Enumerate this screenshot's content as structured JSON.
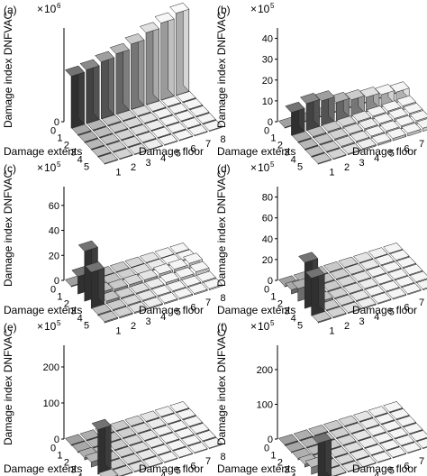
{
  "figure": {
    "common": {
      "zlabel": "Damage index DNFVAC",
      "xlabel": "Damage floor",
      "ylabel": "Damage extents",
      "x_ticks": [
        "1",
        "2",
        "3",
        "4",
        "5",
        "6",
        "7",
        "8"
      ],
      "y_ticks": [
        "0",
        "1",
        "2",
        "3",
        "4",
        "5"
      ]
    }
  },
  "chart_data": [
    {
      "type": "bar3d",
      "panel": "(a)",
      "exponent": "6",
      "z_ticks": [
        "0"
      ],
      "zlim": [
        0,
        5.6
      ],
      "floors": [
        1,
        2,
        3,
        4,
        5,
        6,
        7,
        8
      ],
      "extents": [
        0,
        1,
        2,
        3,
        4,
        5
      ],
      "values": [
        [
          3.1,
          3.2,
          3.4,
          3.6,
          3.9,
          4.3,
          4.6,
          4.9
        ],
        [
          0,
          0,
          0,
          0,
          0,
          0,
          0,
          0
        ],
        [
          0,
          0,
          0,
          0,
          0,
          0,
          0,
          0
        ],
        [
          0,
          0,
          0,
          0,
          0,
          0,
          0,
          0
        ],
        [
          0,
          0,
          0,
          0,
          0,
          0,
          0,
          0
        ],
        [
          0,
          0,
          0,
          0,
          0,
          0,
          0,
          0
        ]
      ]
    },
    {
      "type": "bar3d",
      "panel": "(b)",
      "exponent": "5",
      "z_ticks": [
        "0",
        "10",
        "20",
        "30",
        "40"
      ],
      "zlim": [
        0,
        45
      ],
      "floors": [
        1,
        2,
        3,
        4,
        5,
        6,
        7,
        8
      ],
      "extents": [
        0,
        1,
        2,
        3,
        4,
        5
      ],
      "values": [
        [
          0,
          0,
          0,
          0,
          0,
          0,
          0,
          0
        ],
        [
          11,
          13,
          12,
          9,
          8,
          7,
          6,
          5
        ],
        [
          0.4,
          0.6,
          0.8,
          1.0,
          1.2,
          1.4,
          1.6,
          1.8
        ],
        [
          0.3,
          0.5,
          0.7,
          0.9,
          1.1,
          1.3,
          1.5,
          1.7
        ],
        [
          0.2,
          0.4,
          0.6,
          0.8,
          1.0,
          1.2,
          1.4,
          1.6
        ],
        [
          0.1,
          0.3,
          0.5,
          0.7,
          0.9,
          1.1,
          1.3,
          1.5
        ]
      ]
    },
    {
      "type": "bar3d",
      "panel": "(c)",
      "exponent": "5",
      "z_ticks": [
        "0",
        "20",
        "40",
        "60"
      ],
      "zlim": [
        0,
        75
      ],
      "floors": [
        1,
        2,
        3,
        4,
        5,
        6,
        7,
        8
      ],
      "extents": [
        0,
        1,
        2,
        3,
        4,
        5
      ],
      "values": [
        [
          0,
          0,
          0,
          0,
          0,
          0,
          0,
          0
        ],
        [
          14,
          2,
          1,
          1,
          1,
          1,
          1,
          1
        ],
        [
          40,
          3,
          2,
          2,
          2,
          3,
          3,
          4
        ],
        [
          29,
          2,
          1,
          1,
          1,
          2,
          2,
          3
        ],
        [
          1,
          1,
          1,
          1,
          1,
          1,
          1,
          1
        ],
        [
          1,
          1,
          1,
          1,
          1,
          1,
          1,
          1
        ]
      ]
    },
    {
      "type": "bar3d",
      "panel": "(d)",
      "exponent": "5",
      "z_ticks": [
        "0",
        "20",
        "40",
        "60",
        "80"
      ],
      "zlim": [
        0,
        90
      ],
      "floors": [
        1,
        2,
        3,
        4,
        5,
        6,
        7,
        8
      ],
      "extents": [
        0,
        1,
        2,
        3,
        4,
        5
      ],
      "values": [
        [
          0,
          0,
          0,
          0,
          0,
          0,
          0,
          0
        ],
        [
          4,
          1,
          1,
          1,
          1,
          1,
          1,
          1
        ],
        [
          12,
          1,
          1,
          1,
          1,
          1,
          1,
          1
        ],
        [
          44,
          2,
          1,
          1,
          1,
          1,
          1,
          1
        ],
        [
          36,
          1,
          1,
          1,
          1,
          1,
          1,
          1
        ],
        [
          1,
          1,
          1,
          1,
          1,
          1,
          1,
          1
        ]
      ]
    },
    {
      "type": "bar3d",
      "panel": "(e)",
      "exponent": "5",
      "z_ticks": [
        "0",
        "100",
        "200"
      ],
      "zlim": [
        0,
        260
      ],
      "floors": [
        1,
        2,
        3,
        4,
        5,
        6,
        7,
        8
      ],
      "extents": [
        0,
        1,
        2,
        3,
        4,
        5
      ],
      "values": [
        [
          0,
          0,
          0,
          0,
          0,
          0,
          0,
          0
        ],
        [
          3,
          1,
          1,
          1,
          1,
          1,
          1,
          1
        ],
        [
          6,
          1,
          1,
          1,
          1,
          1,
          1,
          1
        ],
        [
          14,
          1,
          1,
          1,
          1,
          1,
          1,
          1
        ],
        [
          124,
          2,
          1,
          1,
          1,
          1,
          1,
          1
        ],
        [
          6,
          1,
          1,
          1,
          1,
          1,
          1,
          1
        ]
      ]
    },
    {
      "type": "bar3d",
      "panel": "(f)",
      "exponent": "5",
      "z_ticks": [
        "0",
        "100",
        "200"
      ],
      "zlim": [
        0,
        270
      ],
      "floors": [
        1,
        2,
        3,
        4,
        5,
        6,
        7,
        8
      ],
      "extents": [
        0,
        1,
        2,
        3,
        4,
        5
      ],
      "values": [
        [
          0,
          0,
          0,
          0,
          0,
          0,
          0,
          0
        ],
        [
          2,
          1,
          1,
          1,
          1,
          1,
          1,
          1
        ],
        [
          4,
          1,
          1,
          1,
          1,
          1,
          1,
          1
        ],
        [
          8,
          1,
          1,
          1,
          1,
          1,
          1,
          1
        ],
        [
          20,
          1,
          1,
          1,
          1,
          1,
          1,
          1
        ],
        [
          110,
          2,
          1,
          1,
          1,
          1,
          1,
          1
        ]
      ]
    }
  ]
}
